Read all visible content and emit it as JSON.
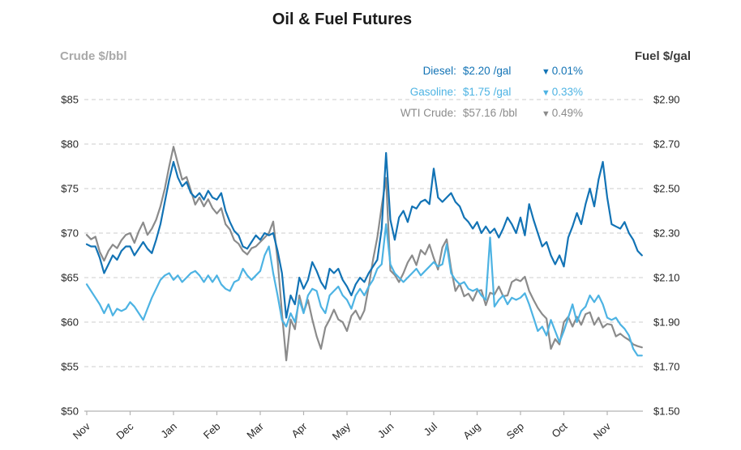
{
  "title": "Oil & Fuel Futures",
  "legend": {
    "items": [
      {
        "label": "Diesel:",
        "value": "$2.20",
        "unit": "/gal",
        "change_dir": "▼",
        "change_pct": "0.01%",
        "color": "#1273b5"
      },
      {
        "label": "Gasoline:",
        "value": "$1.75",
        "unit": "/gal",
        "change_dir": "▼",
        "change_pct": "0.33%",
        "color": "#4db3e3"
      },
      {
        "label": "WTI Crude:",
        "value": "$57.16",
        "unit": "/bbl",
        "change_dir": "▼",
        "change_pct": "0.49%",
        "color": "#8b8b8b"
      }
    ]
  },
  "chart_data": {
    "type": "line",
    "title": "Oil & Fuel Futures",
    "grid": "horizontal-dashed",
    "legend_position": "top-right",
    "x_axis": {
      "tick_labels": [
        "Nov",
        "Dec",
        "Jan",
        "Feb",
        "Mar",
        "Apr",
        "May",
        "Jun",
        "Jul",
        "Aug",
        "Sep",
        "Oct",
        "Nov"
      ],
      "label_rotation_deg": -42,
      "x_unit": "months from first Nov tick"
    },
    "left_axis": {
      "title": "Crude $/bbl",
      "min": 50,
      "max": 85,
      "tick_labels": [
        "$85",
        "$80",
        "$75",
        "$70",
        "$65",
        "$60",
        "$55",
        "$50"
      ]
    },
    "right_axis": {
      "title": "Fuel $/gal",
      "min": 1.5,
      "max": 2.9,
      "tick_labels": [
        "$2.90",
        "$2.70",
        "$2.50",
        "$2.30",
        "$2.10",
        "$1.90",
        "$1.70",
        "$1.50"
      ]
    },
    "x_start": 0,
    "x_step": 0.1,
    "series": [
      {
        "name": "WTI Crude",
        "axis": "left",
        "unit": "$/bbl",
        "color": "#8b8b8b",
        "last_value": 57.16,
        "last_change_pct": -0.49,
        "values": [
          69.8,
          69.3,
          69.6,
          67.9,
          66.9,
          68.0,
          68.7,
          68.3,
          69.2,
          69.8,
          70.0,
          68.9,
          70.2,
          71.2,
          69.8,
          70.5,
          71.5,
          73.0,
          75.0,
          77.5,
          79.7,
          77.8,
          76.0,
          76.3,
          74.8,
          73.2,
          74.0,
          73.0,
          73.8,
          72.8,
          72.2,
          72.8,
          71.0,
          70.4,
          69.2,
          68.8,
          68.0,
          67.6,
          68.3,
          68.5,
          69.0,
          69.5,
          70.0,
          71.3,
          67.0,
          61.0,
          55.7,
          60.3,
          59.2,
          63.0,
          61.1,
          62.5,
          60.3,
          58.4,
          57.0,
          59.4,
          60.3,
          61.4,
          60.3,
          60.0,
          59.0,
          60.7,
          61.3,
          60.3,
          61.3,
          64.0,
          67.0,
          69.5,
          73.0,
          76.2,
          65.8,
          65.3,
          64.5,
          65.5,
          66.7,
          67.5,
          66.4,
          68.1,
          67.6,
          68.7,
          67.2,
          65.9,
          68.4,
          69.3,
          66.0,
          63.5,
          64.3,
          62.9,
          63.2,
          62.4,
          63.5,
          63.6,
          61.9,
          63.3,
          63.1,
          64.0,
          62.9,
          63.0,
          64.5,
          64.8,
          64.6,
          65.1,
          63.5,
          62.5,
          61.6,
          60.9,
          60.4,
          57.0,
          58.1,
          57.5,
          60.0,
          60.6,
          59.5,
          60.6,
          59.7,
          60.9,
          61.1,
          59.7,
          60.5,
          59.4,
          59.8,
          59.7,
          58.4,
          58.7,
          58.3,
          58.0,
          57.5,
          57.3,
          57.16
        ]
      },
      {
        "name": "Gasoline",
        "axis": "right",
        "unit": "$/gal",
        "color": "#4db3e3",
        "last_value": 1.75,
        "last_change_pct": -0.33,
        "values": [
          2.07,
          2.04,
          2.01,
          1.98,
          1.94,
          1.98,
          1.93,
          1.96,
          1.95,
          1.96,
          1.99,
          1.97,
          1.94,
          1.91,
          1.96,
          2.01,
          2.05,
          2.09,
          2.11,
          2.12,
          2.09,
          2.11,
          2.08,
          2.1,
          2.12,
          2.13,
          2.11,
          2.08,
          2.11,
          2.08,
          2.11,
          2.07,
          2.05,
          2.04,
          2.08,
          2.09,
          2.14,
          2.11,
          2.09,
          2.11,
          2.13,
          2.2,
          2.24,
          2.12,
          2.02,
          1.91,
          1.88,
          1.94,
          1.9,
          2.0,
          1.94,
          2.02,
          2.05,
          2.04,
          1.97,
          1.94,
          2.02,
          2.04,
          2.06,
          2.02,
          2.0,
          1.96,
          2.02,
          2.05,
          2.02,
          2.06,
          2.09,
          2.14,
          2.16,
          2.34,
          2.16,
          2.12,
          2.1,
          2.08,
          2.1,
          2.12,
          2.14,
          2.11,
          2.13,
          2.15,
          2.17,
          2.15,
          2.16,
          2.25,
          2.12,
          2.09,
          2.07,
          2.08,
          2.05,
          2.04,
          2.05,
          2.02,
          2.0,
          2.28,
          1.97,
          2.0,
          2.02,
          1.98,
          2.01,
          2.0,
          2.01,
          2.03,
          1.98,
          1.92,
          1.86,
          1.88,
          1.84,
          1.91,
          1.86,
          1.81,
          1.86,
          1.92,
          1.98,
          1.9,
          1.95,
          1.97,
          2.02,
          1.99,
          2.02,
          1.98,
          1.92,
          1.91,
          1.92,
          1.89,
          1.87,
          1.84,
          1.78,
          1.75,
          1.75
        ]
      },
      {
        "name": "Diesel",
        "axis": "right",
        "unit": "$/gal",
        "color": "#1273b5",
        "last_value": 2.2,
        "last_change_pct": -0.01,
        "values": [
          2.25,
          2.24,
          2.24,
          2.19,
          2.12,
          2.16,
          2.2,
          2.18,
          2.22,
          2.24,
          2.24,
          2.2,
          2.23,
          2.26,
          2.23,
          2.21,
          2.27,
          2.34,
          2.44,
          2.54,
          2.62,
          2.55,
          2.51,
          2.53,
          2.48,
          2.46,
          2.48,
          2.45,
          2.49,
          2.46,
          2.45,
          2.48,
          2.4,
          2.35,
          2.31,
          2.29,
          2.24,
          2.23,
          2.26,
          2.29,
          2.27,
          2.3,
          2.29,
          2.3,
          2.22,
          2.12,
          1.92,
          2.02,
          1.98,
          2.1,
          2.05,
          2.09,
          2.17,
          2.13,
          2.08,
          2.05,
          2.14,
          2.12,
          2.14,
          2.09,
          2.06,
          2.02,
          2.07,
          2.1,
          2.08,
          2.12,
          2.15,
          2.18,
          2.32,
          2.66,
          2.36,
          2.27,
          2.37,
          2.4,
          2.35,
          2.42,
          2.41,
          2.44,
          2.45,
          2.43,
          2.59,
          2.46,
          2.44,
          2.46,
          2.48,
          2.44,
          2.42,
          2.37,
          2.35,
          2.32,
          2.35,
          2.3,
          2.33,
          2.3,
          2.32,
          2.28,
          2.32,
          2.37,
          2.34,
          2.3,
          2.37,
          2.29,
          2.43,
          2.36,
          2.3,
          2.24,
          2.26,
          2.2,
          2.16,
          2.2,
          2.15,
          2.28,
          2.33,
          2.39,
          2.34,
          2.43,
          2.5,
          2.42,
          2.54,
          2.62,
          2.46,
          2.34,
          2.33,
          2.32,
          2.35,
          2.3,
          2.27,
          2.22,
          2.2
        ]
      }
    ]
  },
  "colors": {
    "gridline": "#cccccc",
    "axis_line": "#b3b3b3",
    "tick_text": "#262626",
    "left_title": "#a9a9a9",
    "right_title": "#3c3c3c"
  }
}
